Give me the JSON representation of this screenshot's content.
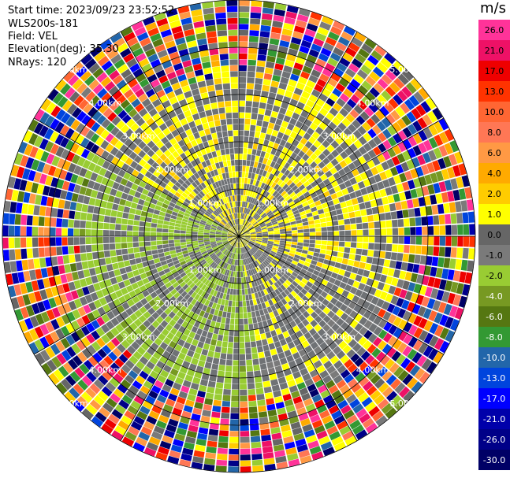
{
  "header": {
    "start_time": "Start time: 2023/09/23 23:52:52",
    "instrument": "WLS200s-181",
    "field": "Field: VEL",
    "elevation": "Elevation(deg): 35.30",
    "nrays": "NRays: 120"
  },
  "colorbar": {
    "unit": "m/s",
    "ticks": [
      "26.0",
      "21.0",
      "17.0",
      "13.0",
      "10.0",
      "8.0",
      "6.0",
      "4.0",
      "2.0",
      "1.0",
      "0.0",
      "-1.0",
      "-2.0",
      "-4.0",
      "-6.0",
      "-8.0",
      "-10.0",
      "-13.0",
      "-17.0",
      "-21.0",
      "-26.0",
      "-30.0"
    ],
    "colors": [
      "#ff3399",
      "#ee1166",
      "#ee0000",
      "#ff3300",
      "#ff6633",
      "#ff7755",
      "#ff9944",
      "#ffaa00",
      "#ffcc00",
      "#ffff00",
      "#666666",
      "#7a7a7a",
      "#99cc33",
      "#779922",
      "#557711",
      "#339933",
      "#2266aa",
      "#0044dd",
      "#0000ff",
      "#0000aa",
      "#000088",
      "#000066"
    ]
  },
  "chart_data": {
    "type": "heatmap",
    "subtype": "PPI polar scan",
    "field": "VEL",
    "units": "m/s",
    "nrays": 120,
    "elevation_deg": 35.3,
    "range_rings_km": [
      "1.00km",
      "2.00km",
      "3.00km",
      "4.00km",
      "5.00km"
    ],
    "ring_radii_km": [
      1,
      2,
      3,
      4,
      5
    ],
    "max_range_km": 5.0,
    "azimuth_lines_deg": [
      0,
      30,
      60,
      90,
      120,
      150,
      180,
      210,
      240,
      270,
      300,
      330
    ],
    "value_range": [
      -30,
      30
    ],
    "description_of_field": {
      "inner_region_km": [
        0,
        3.6
      ],
      "north_east_values": "0 to 2 m/s (gray and yellow)",
      "south_west_values": "-1 to -2 m/s (gray and light green)",
      "outer_region_km": [
        3.6,
        5.0
      ],
      "outer_values": "noise spanning full range -30 to 26 m/s"
    }
  }
}
